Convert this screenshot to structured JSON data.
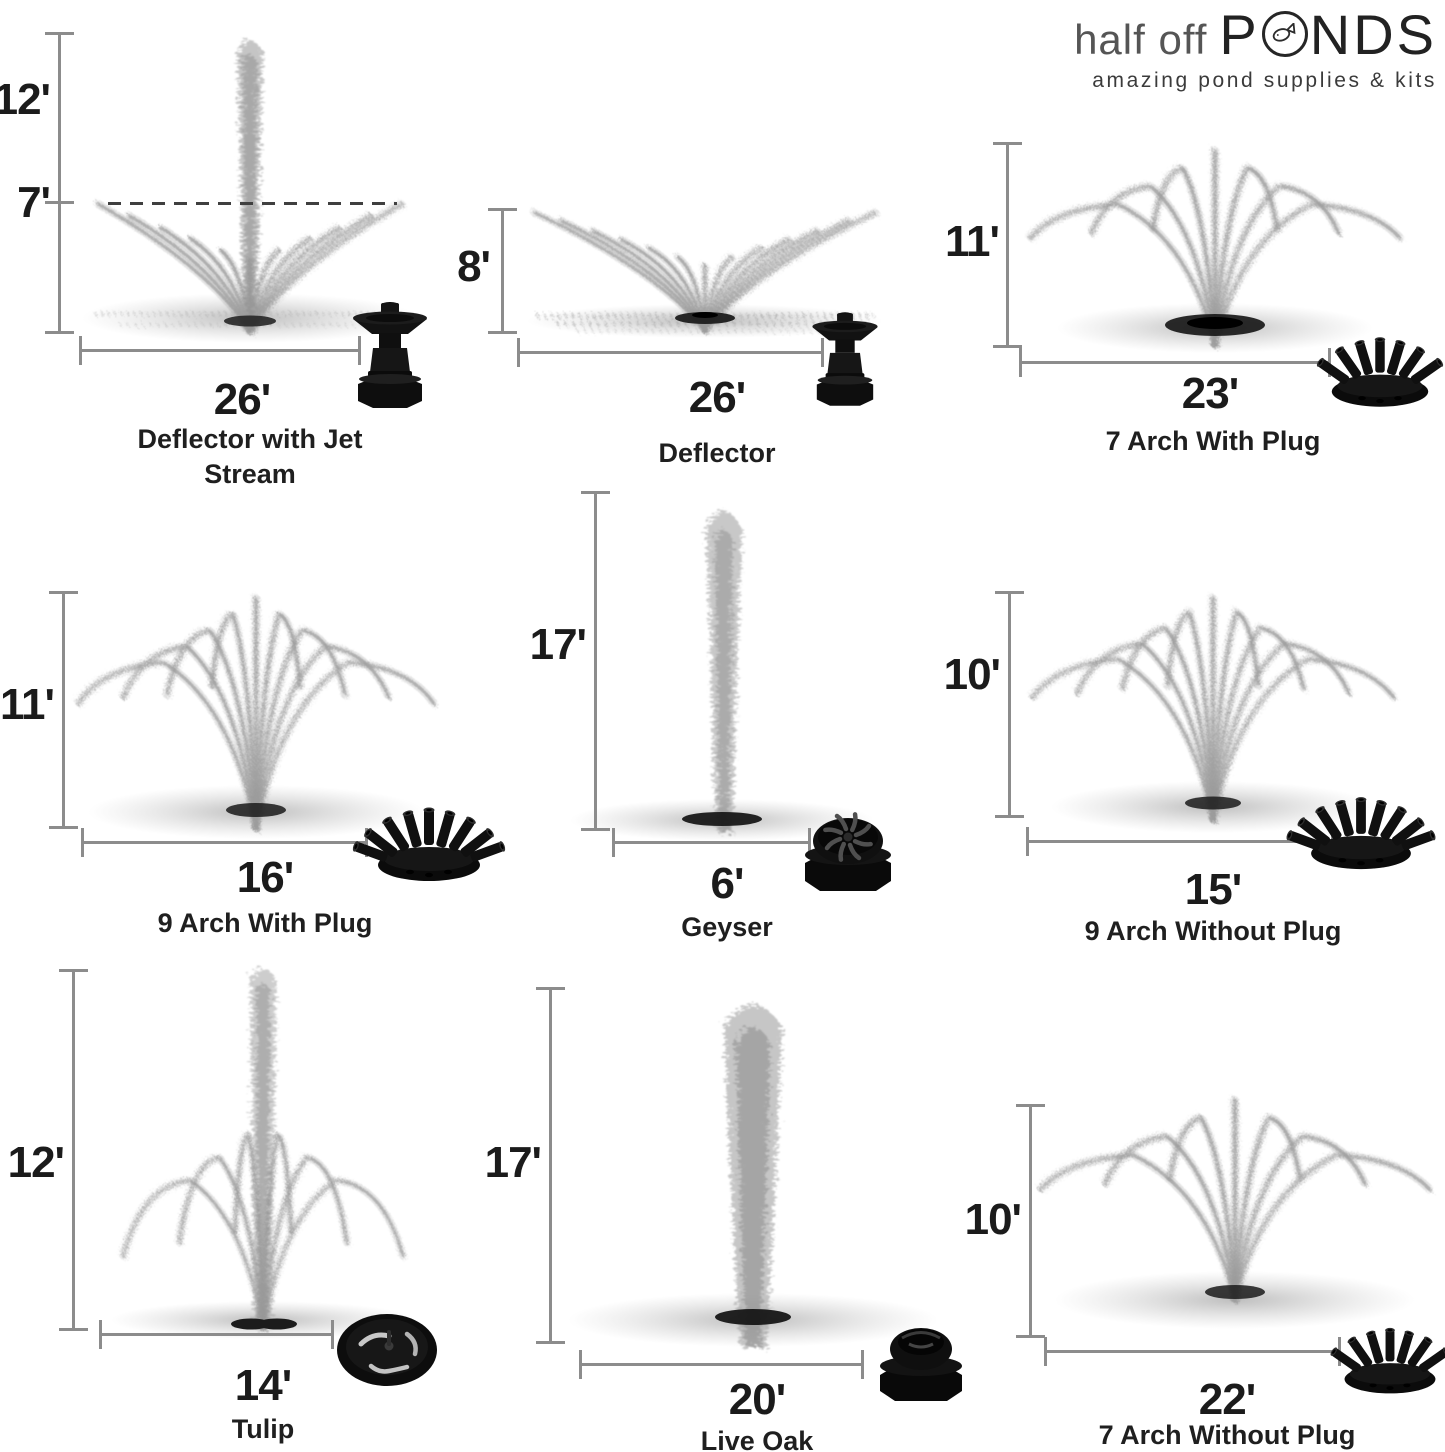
{
  "logo": {
    "prefix": "half off",
    "brand_first": "P",
    "brand_rest": "NDS",
    "tagline": "amazing pond supplies & kits",
    "fish_icon": "fish-in-o-icon"
  },
  "colors": {
    "text": "#1b1b1b",
    "dimension_line": "#8c8c8c",
    "dashed_reference": "#3f3f3f",
    "spray": "#9c9c9c",
    "nozzle": "#111111",
    "background": "#ffffff"
  },
  "cells": [
    {
      "name": "Deflector with Jet Stream",
      "height": "12'",
      "height_secondary": "7'",
      "width": "26'",
      "spray_pattern": "deflector-with-jet-stream",
      "nozzle_icon": "deflector-float-nozzle-icon"
    },
    {
      "name": "Deflector",
      "height": "8'",
      "width": "26'",
      "spray_pattern": "deflector",
      "nozzle_icon": "deflector-float-nozzle-icon"
    },
    {
      "name": "7 Arch With Plug",
      "height": "11'",
      "width": "23'",
      "spray_pattern": "7-arch",
      "nozzle_icon": "7-jet-cluster-nozzle-icon"
    },
    {
      "name": "9 Arch With Plug",
      "height": "11'",
      "width": "16'",
      "spray_pattern": "9-arch",
      "nozzle_icon": "9-jet-cluster-nozzle-icon"
    },
    {
      "name": "Geyser",
      "height": "17'",
      "width": "6'",
      "spray_pattern": "geyser-column",
      "nozzle_icon": "geyser-cap-nozzle-icon"
    },
    {
      "name": "9 Arch Without Plug",
      "height": "10'",
      "width": "15'",
      "spray_pattern": "9-arch",
      "nozzle_icon": "9-jet-cluster-nozzle-icon"
    },
    {
      "name": "Tulip",
      "height": "12'",
      "width": "14'",
      "spray_pattern": "tulip",
      "nozzle_icon": "tulip-disc-nozzle-icon"
    },
    {
      "name": "Live Oak",
      "height": "17'",
      "width": "20'",
      "spray_pattern": "live-oak-column",
      "nozzle_icon": "live-oak-cap-nozzle-icon"
    },
    {
      "name": "7 Arch Without Plug",
      "height": "10'",
      "width": "22'",
      "spray_pattern": "7-arch",
      "nozzle_icon": "7-jet-cluster-nozzle-icon"
    }
  ]
}
